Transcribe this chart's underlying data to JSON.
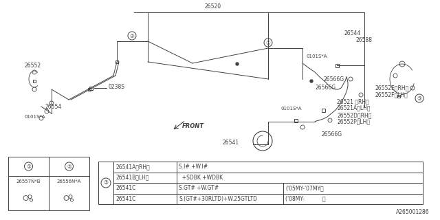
{
  "bg_color": "#ffffff",
  "line_color": "#404040",
  "lw": 0.7,
  "fs": 5.5,
  "part_26520": "26520",
  "part_26552": "26552",
  "part_26554": "26554",
  "part_26541": "26541",
  "part_26544": "26544",
  "part_26580": "26588",
  "part_26521rh": "26521 〈RH〉",
  "part_26521lh": "26521A〈LH〉",
  "part_26552d": "26552D〈RH〉",
  "part_26552p": "26552P〈LH〉",
  "part_26566g": "26566G",
  "part_26552e": "26552E〈RH〉",
  "part_26552f": "26552F〈LH〉",
  "part_0238s": "0238S",
  "part_0101sa": "0101S*A",
  "part_26557nb": "26557N*B",
  "part_26556na": "26556N*A",
  "c1": "①",
  "c2": "②",
  "c3": "③",
  "front": "FRONT",
  "diagram_id": "A265001286",
  "t1r1": [
    "26541A〈RH〉",
    "S.I# +W.I#"
  ],
  "t1r2": [
    "26541B〈LH〉",
    "  +SDBK +WDBK"
  ],
  "t2r1": [
    "26541C",
    "S.GT# +W.GT#",
    "('05MY-'07MY〉"
  ],
  "t2r2": [
    "26541C",
    "S.(GT#+30RLTD)+W.25GTLTD",
    "('08MY-           〉"
  ]
}
